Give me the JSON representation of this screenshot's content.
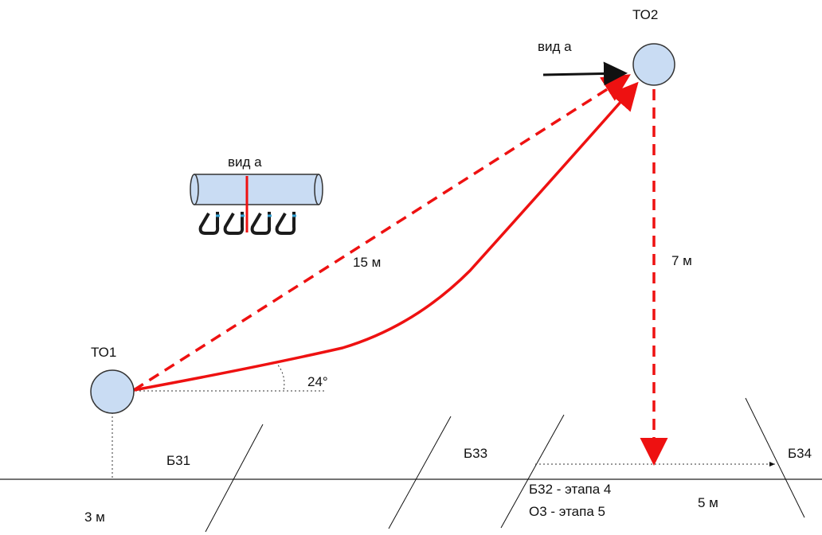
{
  "labels": {
    "to1": "ТО1",
    "to2": "ТО2",
    "view_a_top": "вид а",
    "view_a_detail": "вид а",
    "dist_15": "15 м",
    "dist_7": "7 м",
    "angle": "24°",
    "bz1": "Б31",
    "bz3": "Б33",
    "bz4": "Б34",
    "bz2_stage": "Б32 - этапа 4",
    "oz_stage": "О3 - этапа 5",
    "dist_3": "3 м",
    "dist_5": "5 м"
  },
  "colors": {
    "rope": "#ee1111",
    "anchor_fill": "#c9dcf3",
    "anchor_stroke": "#333333",
    "ground": "#222222",
    "carabiner": "#1b1b1b",
    "carabiner_gate": "#3aa6d8"
  },
  "icons": {
    "anchor": "circle-anchor-icon",
    "pipe": "pipe-crossbar-icon",
    "carabiner": "carabiner-icon",
    "arrow": "arrow-icon"
  }
}
